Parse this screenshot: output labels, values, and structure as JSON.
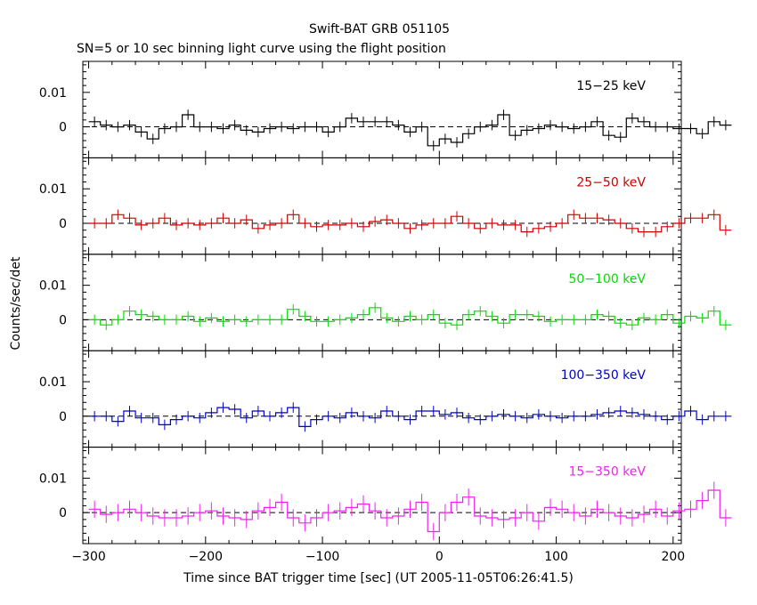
{
  "title": "Swift-BAT GRB 051105",
  "subtitle": "SN=5 or 10 sec binning light curve using the flight position",
  "ylabel": "Counts/sec/det",
  "xlabel": "Time since BAT trigger time [sec] (UT 2005-11-05T06:26:41.5)",
  "chart_data": {
    "type": "line",
    "title": "Swift-BAT GRB 051105",
    "subtitle": "SN=5 or 10 sec binning light curve using the flight position",
    "xlabel": "Time since BAT trigger time [sec] (UT 2005-11-05T06:26:41.5)",
    "ylabel": "Counts/sec/det",
    "xlim": [
      -305,
      207
    ],
    "ylim": [
      -0.009,
      0.019
    ],
    "x_ticks": [
      -300,
      -200,
      -100,
      0,
      100,
      200
    ],
    "x_tick_labels": [
      "−300",
      "−200",
      "−100",
      "0",
      "100",
      "200"
    ],
    "y_ticks": [
      0,
      0.01
    ],
    "y_tick_labels": [
      "0",
      "0.01"
    ],
    "bin_width_sec": 10,
    "bin_start_sec": -300,
    "zero_line": "dashed",
    "series": [
      {
        "name": "15−25 keV",
        "color": "#000000",
        "values": [
          0.0015,
          0.0005,
          0.0,
          0.0005,
          -0.0015,
          -0.0035,
          -0.0005,
          0.0,
          0.0035,
          0.0,
          0.0,
          -0.0005,
          0.0005,
          -0.001,
          -0.0015,
          -0.0005,
          0.0,
          -0.0005,
          0.0,
          0.0,
          -0.0015,
          0.0,
          0.0025,
          0.0015,
          0.0015,
          0.0015,
          0.0005,
          -0.0015,
          0.0,
          -0.0055,
          -0.0035,
          -0.0045,
          -0.002,
          0.0,
          0.0005,
          0.0035,
          -0.0025,
          -0.001,
          -0.0005,
          0.0005,
          0.0,
          -0.0005,
          0.0,
          0.0015,
          -0.0025,
          -0.003,
          0.0025,
          0.0015,
          0.0,
          0.0,
          -0.0005,
          -0.0005,
          -0.002,
          0.0015,
          0.0005
        ],
        "errors": [
          0.0015,
          0.0015,
          0.0015,
          0.0015,
          0.0015,
          0.0015,
          0.0015,
          0.0015,
          0.0015,
          0.0015,
          0.0015,
          0.0015,
          0.0015,
          0.0015,
          0.0015,
          0.0015,
          0.0015,
          0.0015,
          0.0015,
          0.0015,
          0.0015,
          0.0015,
          0.0015,
          0.0015,
          0.0015,
          0.0015,
          0.0015,
          0.0015,
          0.0015,
          0.0015,
          0.0015,
          0.0015,
          0.0015,
          0.0015,
          0.0015,
          0.0015,
          0.0015,
          0.0015,
          0.0015,
          0.0015,
          0.0015,
          0.0015,
          0.0015,
          0.0015,
          0.0015,
          0.0015,
          0.0015,
          0.0015,
          0.0015,
          0.0015,
          0.0015,
          0.0015,
          0.0015,
          0.0015,
          0.0015
        ]
      },
      {
        "name": "25−50 keV",
        "color": "#cc0000",
        "values": [
          0.0,
          0.0,
          0.0025,
          0.0015,
          -0.0005,
          0.0,
          0.0015,
          -0.0005,
          0.0,
          -0.0005,
          0.0,
          0.0015,
          0.0,
          0.001,
          -0.0015,
          -0.0005,
          0.0,
          0.0025,
          0.0,
          -0.001,
          -0.0005,
          -0.0005,
          0.0,
          -0.001,
          0.0005,
          0.001,
          0.0,
          -0.0015,
          -0.0005,
          0.0,
          0.0,
          0.002,
          0.0,
          -0.0015,
          0.0,
          -0.0005,
          -0.0005,
          -0.0025,
          -0.0015,
          -0.001,
          0.0,
          0.0025,
          0.0015,
          0.0015,
          0.001,
          0.0,
          -0.0015,
          -0.0025,
          -0.0025,
          -0.001,
          0.0,
          0.0015,
          0.0015,
          0.0025,
          -0.002
        ],
        "errors": [
          0.0015,
          0.0015,
          0.0015,
          0.0015,
          0.0015,
          0.0015,
          0.0015,
          0.0015,
          0.0015,
          0.0015,
          0.0015,
          0.0015,
          0.0015,
          0.0015,
          0.0015,
          0.0015,
          0.0015,
          0.0015,
          0.0015,
          0.0015,
          0.0015,
          0.0015,
          0.0015,
          0.0015,
          0.0015,
          0.0015,
          0.0015,
          0.0015,
          0.0015,
          0.0015,
          0.0015,
          0.0015,
          0.0015,
          0.0015,
          0.0015,
          0.0015,
          0.0015,
          0.0015,
          0.0015,
          0.0015,
          0.0015,
          0.0015,
          0.0015,
          0.0015,
          0.0015,
          0.0015,
          0.0015,
          0.0015,
          0.0015,
          0.0015,
          0.0015,
          0.0015,
          0.0015,
          0.0015,
          0.0015
        ]
      },
      {
        "name": "50−100 keV",
        "color": "#00dd00",
        "values": [
          0.0,
          -0.0015,
          0.0,
          0.0025,
          0.0015,
          0.001,
          0.0,
          0.0,
          0.001,
          -0.0005,
          0.0005,
          -0.0005,
          0.0,
          -0.0005,
          0.0,
          0.0,
          0.0,
          0.003,
          0.001,
          -0.0005,
          -0.0005,
          0.0,
          0.0005,
          0.0015,
          0.0035,
          0.0005,
          -0.0005,
          0.001,
          0.0,
          0.0015,
          -0.001,
          -0.0015,
          0.0015,
          0.0025,
          0.001,
          -0.001,
          0.0015,
          0.0015,
          0.001,
          -0.0005,
          0.0,
          0.0,
          0.0,
          0.0015,
          0.001,
          -0.001,
          -0.0015,
          0.0005,
          0.0,
          0.0015,
          -0.001,
          0.001,
          0.0005,
          0.0025,
          -0.0015
        ],
        "errors": [
          0.0015,
          0.0015,
          0.0015,
          0.0015,
          0.0015,
          0.0015,
          0.0015,
          0.0015,
          0.0015,
          0.0015,
          0.0015,
          0.0015,
          0.0015,
          0.0015,
          0.0015,
          0.0015,
          0.0015,
          0.0015,
          0.0015,
          0.0015,
          0.0015,
          0.0015,
          0.0015,
          0.0015,
          0.0015,
          0.0015,
          0.0015,
          0.0015,
          0.0015,
          0.0015,
          0.0015,
          0.0015,
          0.0015,
          0.0015,
          0.0015,
          0.0015,
          0.0015,
          0.0015,
          0.0015,
          0.0015,
          0.0015,
          0.0015,
          0.0015,
          0.0015,
          0.0015,
          0.0015,
          0.0015,
          0.0015,
          0.0015,
          0.0015,
          0.0015,
          0.0015,
          0.0015,
          0.0015,
          0.0015
        ]
      },
      {
        "name": "100−350 keV",
        "color": "#0000cc",
        "values": [
          0.0,
          0.0,
          -0.0015,
          0.0015,
          -0.0005,
          -0.0005,
          -0.0025,
          -0.001,
          0.0,
          -0.0005,
          0.001,
          0.0025,
          0.002,
          -0.0005,
          0.0015,
          0.0,
          0.001,
          0.0025,
          -0.003,
          -0.001,
          0.0,
          -0.0005,
          0.001,
          0.0,
          -0.0005,
          0.0015,
          0.0,
          -0.001,
          0.0015,
          0.0015,
          0.0005,
          0.001,
          -0.0005,
          -0.001,
          0.0,
          0.0005,
          0.0,
          -0.0005,
          0.0005,
          0.0,
          -0.0005,
          0.0,
          0.0,
          0.0005,
          0.001,
          0.0015,
          0.001,
          0.0005,
          0.0,
          -0.001,
          0.0,
          0.0015,
          -0.001,
          0.0,
          0.0
        ],
        "errors": [
          0.0015,
          0.0015,
          0.0015,
          0.0015,
          0.0015,
          0.0015,
          0.0015,
          0.0015,
          0.0015,
          0.0015,
          0.0015,
          0.0015,
          0.0015,
          0.0015,
          0.0015,
          0.0015,
          0.0015,
          0.0015,
          0.0015,
          0.0015,
          0.0015,
          0.0015,
          0.0015,
          0.0015,
          0.0015,
          0.0015,
          0.0015,
          0.0015,
          0.0015,
          0.0015,
          0.0015,
          0.0015,
          0.0015,
          0.0015,
          0.0015,
          0.0015,
          0.0015,
          0.0015,
          0.0015,
          0.0015,
          0.0015,
          0.0015,
          0.0015,
          0.0015,
          0.0015,
          0.0015,
          0.0015,
          0.0015,
          0.0015,
          0.0015,
          0.0015,
          0.0015,
          0.0015,
          0.0015,
          0.0015
        ]
      },
      {
        "name": "15−350 keV",
        "color": "#ee22ee",
        "values": [
          0.001,
          -0.0005,
          0.0,
          0.001,
          0.0,
          -0.001,
          -0.0015,
          -0.0015,
          -0.001,
          0.0,
          0.0005,
          -0.001,
          -0.0015,
          -0.002,
          0.0005,
          0.0015,
          0.003,
          -0.0015,
          -0.003,
          -0.0015,
          0.0,
          0.0005,
          0.0015,
          0.0025,
          0.0005,
          -0.0015,
          -0.001,
          0.001,
          0.003,
          -0.0055,
          0.0,
          0.003,
          0.0045,
          -0.001,
          -0.0015,
          -0.002,
          -0.0015,
          0.0,
          -0.0025,
          0.0015,
          0.001,
          0.0,
          -0.001,
          0.001,
          0.0,
          -0.001,
          -0.0015,
          -0.0005,
          0.001,
          -0.001,
          0.0005,
          0.001,
          0.0035,
          0.0065,
          -0.0015
        ],
        "errors": [
          0.0025,
          0.0025,
          0.0025,
          0.0025,
          0.0025,
          0.0025,
          0.0025,
          0.0025,
          0.0025,
          0.0025,
          0.0025,
          0.0025,
          0.0025,
          0.0025,
          0.0025,
          0.0025,
          0.0025,
          0.0025,
          0.0025,
          0.0025,
          0.0025,
          0.0025,
          0.0025,
          0.0025,
          0.0025,
          0.0025,
          0.0025,
          0.0025,
          0.0025,
          0.0025,
          0.0025,
          0.0025,
          0.0025,
          0.0025,
          0.0025,
          0.0025,
          0.0025,
          0.0025,
          0.0025,
          0.0025,
          0.0025,
          0.0025,
          0.0025,
          0.0025,
          0.0025,
          0.0025,
          0.0025,
          0.0025,
          0.0025,
          0.0025,
          0.0025,
          0.0025,
          0.0025,
          0.0025,
          0.0025
        ]
      }
    ]
  }
}
